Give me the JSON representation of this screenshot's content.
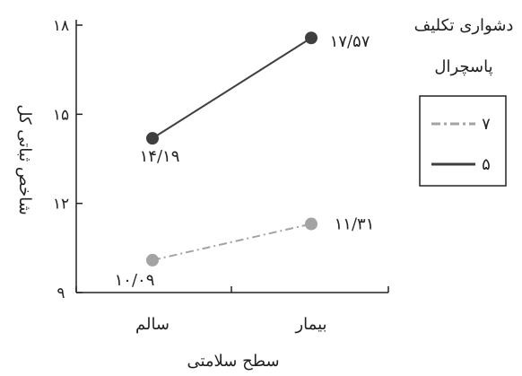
{
  "chart_data": {
    "type": "line",
    "xlabel": "سطح سلامتی",
    "ylabel": "شاخص ثباتی کل",
    "categories": [
      "سالم",
      "بیمار"
    ],
    "yticks": [
      "۹",
      "۱۲",
      "۱۵",
      "۱۸"
    ],
    "ylim": [
      9,
      18
    ],
    "grid": false,
    "legend_title_line1": "دشواری تکلیف",
    "legend_title_line2": "پاسچرال",
    "legend_position": "right",
    "series": [
      {
        "name": "۷",
        "style": "dash-dot",
        "color": "#a3a3a3",
        "values": [
          10.09,
          11.31
        ],
        "labels": [
          "۱۰/۰۹",
          "۱۱/۳۱"
        ]
      },
      {
        "name": "۵",
        "style": "solid",
        "color": "#3f3f3f",
        "values": [
          14.19,
          17.57
        ],
        "labels": [
          "۱۴/۱۹",
          "۱۷/۵۷"
        ]
      }
    ]
  }
}
